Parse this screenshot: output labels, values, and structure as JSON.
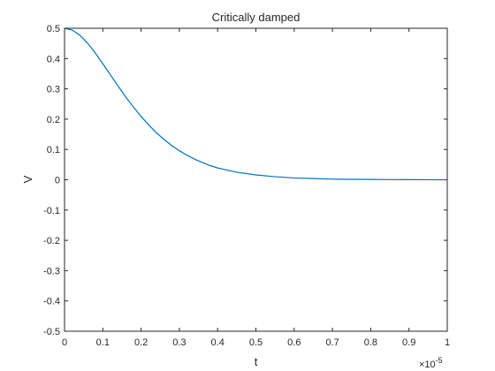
{
  "chart_data": {
    "type": "line",
    "title": "Critically damped",
    "xlabel": "t",
    "ylabel": "V",
    "x_multiplier": "×10",
    "x_multiplier_exp": "-5",
    "xlim": [
      0,
      1
    ],
    "ylim": [
      -0.5,
      0.5
    ],
    "xticks": [
      "0",
      "0.1",
      "0.2",
      "0.3",
      "0.4",
      "0.5",
      "0.6",
      "0.7",
      "0.8",
      "0.9",
      "1"
    ],
    "yticks": [
      "0.5",
      "0.4",
      "0.3",
      "0.2",
      "0.1",
      "0",
      "-0.1",
      "-0.2",
      "-0.3",
      "-0.4",
      "-0.5"
    ],
    "grid": false,
    "series": [
      {
        "color": "#0072BD",
        "x": [
          0,
          0.02,
          0.04,
          0.06,
          0.08,
          0.1,
          0.12,
          0.14,
          0.16,
          0.18,
          0.2,
          0.22,
          0.24,
          0.26,
          0.28,
          0.3,
          0.32,
          0.34,
          0.36,
          0.38,
          0.4,
          0.45,
          0.5,
          0.55,
          0.6,
          0.65,
          0.7,
          0.75,
          0.8,
          0.85,
          0.9,
          0.95,
          1.0
        ],
        "y": [
          0.5,
          0.494,
          0.477,
          0.451,
          0.419,
          0.383,
          0.346,
          0.309,
          0.273,
          0.24,
          0.209,
          0.181,
          0.155,
          0.133,
          0.113,
          0.096,
          0.081,
          0.068,
          0.057,
          0.047,
          0.039,
          0.025,
          0.016,
          0.01,
          0.006,
          0.004,
          0.002,
          0.0015,
          0.001,
          0.0005,
          0.0003,
          0.0002,
          0.0001
        ]
      }
    ]
  }
}
